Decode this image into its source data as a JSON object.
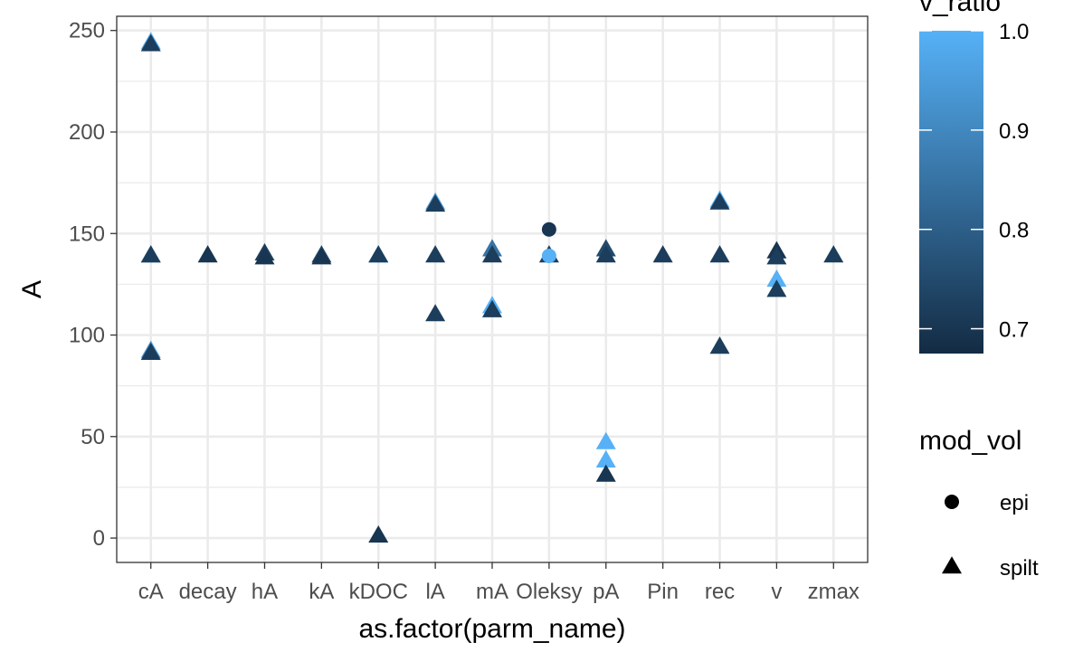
{
  "chart_data": {
    "type": "scatter",
    "title": "",
    "xlabel": "as.factor(parm_name)",
    "ylabel": "A",
    "categories": [
      "cA",
      "decay",
      "hA",
      "kA",
      "kDOC",
      "lA",
      "mA",
      "Oleksy",
      "pA",
      "Pin",
      "rec",
      "v",
      "zmax"
    ],
    "ylim": [
      -12,
      257
    ],
    "yticks": [
      0,
      50,
      100,
      150,
      200,
      250
    ],
    "grid": true,
    "color_legend": {
      "title": "v_ratio",
      "range": [
        0.675,
        1.0
      ],
      "ticks": [
        0.7,
        0.8,
        0.9,
        1.0
      ],
      "tick_labels": [
        "0.7",
        "0.8",
        "0.9",
        "1.0"
      ],
      "low_color": "#132B43",
      "high_color": "#56B1F7",
      "placement": "right"
    },
    "shape_legend": {
      "title": "mod_vol",
      "entries": [
        {
          "label": "epi",
          "shape": "circle"
        },
        {
          "label": "spilt",
          "shape": "triangle"
        }
      ],
      "placement": "right"
    },
    "points": [
      {
        "x": "cA",
        "y": 244,
        "v_ratio": 1.0,
        "shape": "triangle"
      },
      {
        "x": "cA",
        "y": 243,
        "v_ratio": 0.72,
        "shape": "triangle"
      },
      {
        "x": "cA",
        "y": 139,
        "v_ratio": 0.95,
        "shape": "triangle"
      },
      {
        "x": "cA",
        "y": 139,
        "v_ratio": 0.72,
        "shape": "triangle"
      },
      {
        "x": "cA",
        "y": 92,
        "v_ratio": 0.95,
        "shape": "triangle"
      },
      {
        "x": "cA",
        "y": 91,
        "v_ratio": 0.72,
        "shape": "triangle"
      },
      {
        "x": "decay",
        "y": 139,
        "v_ratio": 0.7,
        "shape": "triangle"
      },
      {
        "x": "hA",
        "y": 140,
        "v_ratio": 0.72,
        "shape": "triangle"
      },
      {
        "x": "hA",
        "y": 138,
        "v_ratio": 0.7,
        "shape": "triangle"
      },
      {
        "x": "kA",
        "y": 139,
        "v_ratio": 0.75,
        "shape": "triangle"
      },
      {
        "x": "kA",
        "y": 138,
        "v_ratio": 0.7,
        "shape": "triangle"
      },
      {
        "x": "kDOC",
        "y": 139,
        "v_ratio": 1.0,
        "shape": "triangle"
      },
      {
        "x": "kDOC",
        "y": 139,
        "v_ratio": 0.72,
        "shape": "triangle"
      },
      {
        "x": "kDOC",
        "y": 1,
        "v_ratio": 0.7,
        "shape": "triangle"
      },
      {
        "x": "lA",
        "y": 165,
        "v_ratio": 0.95,
        "shape": "triangle"
      },
      {
        "x": "lA",
        "y": 164,
        "v_ratio": 0.72,
        "shape": "triangle"
      },
      {
        "x": "lA",
        "y": 139,
        "v_ratio": 0.72,
        "shape": "triangle"
      },
      {
        "x": "lA",
        "y": 110,
        "v_ratio": 0.72,
        "shape": "triangle"
      },
      {
        "x": "mA",
        "y": 142,
        "v_ratio": 0.85,
        "shape": "triangle"
      },
      {
        "x": "mA",
        "y": 139,
        "v_ratio": 0.72,
        "shape": "triangle"
      },
      {
        "x": "mA",
        "y": 114,
        "v_ratio": 1.0,
        "shape": "triangle"
      },
      {
        "x": "mA",
        "y": 112,
        "v_ratio": 0.72,
        "shape": "triangle"
      },
      {
        "x": "Oleksy",
        "y": 152,
        "v_ratio": 0.7,
        "shape": "circle"
      },
      {
        "x": "Oleksy",
        "y": 139,
        "v_ratio": 0.72,
        "shape": "triangle"
      },
      {
        "x": "Oleksy",
        "y": 139,
        "v_ratio": 1.0,
        "shape": "circle"
      },
      {
        "x": "pA",
        "y": 142,
        "v_ratio": 0.75,
        "shape": "triangle"
      },
      {
        "x": "pA",
        "y": 139,
        "v_ratio": 0.72,
        "shape": "triangle"
      },
      {
        "x": "pA",
        "y": 47,
        "v_ratio": 1.0,
        "shape": "triangle"
      },
      {
        "x": "pA",
        "y": 38,
        "v_ratio": 1.0,
        "shape": "triangle"
      },
      {
        "x": "pA",
        "y": 31,
        "v_ratio": 0.7,
        "shape": "triangle"
      },
      {
        "x": "Pin",
        "y": 139,
        "v_ratio": 0.72,
        "shape": "triangle"
      },
      {
        "x": "rec",
        "y": 166,
        "v_ratio": 1.0,
        "shape": "triangle"
      },
      {
        "x": "rec",
        "y": 165,
        "v_ratio": 0.72,
        "shape": "triangle"
      },
      {
        "x": "rec",
        "y": 139,
        "v_ratio": 0.72,
        "shape": "triangle"
      },
      {
        "x": "rec",
        "y": 94,
        "v_ratio": 0.72,
        "shape": "triangle"
      },
      {
        "x": "v",
        "y": 141,
        "v_ratio": 0.7,
        "shape": "triangle"
      },
      {
        "x": "v",
        "y": 138,
        "v_ratio": 0.72,
        "shape": "triangle"
      },
      {
        "x": "v",
        "y": 127,
        "v_ratio": 1.0,
        "shape": "triangle"
      },
      {
        "x": "v",
        "y": 122,
        "v_ratio": 0.72,
        "shape": "triangle"
      },
      {
        "x": "zmax",
        "y": 139,
        "v_ratio": 0.72,
        "shape": "triangle"
      }
    ]
  }
}
